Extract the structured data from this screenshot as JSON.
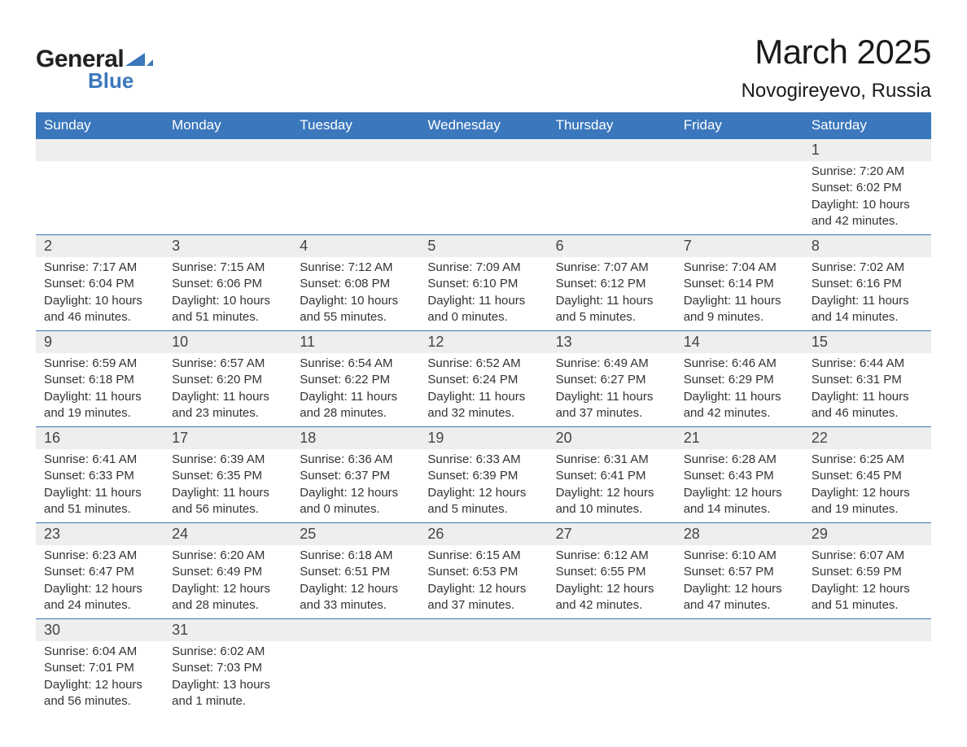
{
  "logo": {
    "text1": "General",
    "text2": "Blue"
  },
  "title": "March 2025",
  "location": "Novogireyevo, Russia",
  "colors": {
    "header_bg": "#3b77bc",
    "header_fg": "#ffffff",
    "daynum_bg": "#eeeeee",
    "border": "#3b77bc",
    "page_bg": "#ffffff",
    "text": "#333333"
  },
  "typography": {
    "title_fontsize": 42,
    "location_fontsize": 24,
    "header_fontsize": 17,
    "daynum_fontsize": 18,
    "detail_fontsize": 15
  },
  "days_of_week": [
    "Sunday",
    "Monday",
    "Tuesday",
    "Wednesday",
    "Thursday",
    "Friday",
    "Saturday"
  ],
  "weeks": [
    [
      null,
      null,
      null,
      null,
      null,
      null,
      {
        "n": "1",
        "sunrise": "Sunrise: 7:20 AM",
        "sunset": "Sunset: 6:02 PM",
        "daylight1": "Daylight: 10 hours",
        "daylight2": "and 42 minutes."
      }
    ],
    [
      {
        "n": "2",
        "sunrise": "Sunrise: 7:17 AM",
        "sunset": "Sunset: 6:04 PM",
        "daylight1": "Daylight: 10 hours",
        "daylight2": "and 46 minutes."
      },
      {
        "n": "3",
        "sunrise": "Sunrise: 7:15 AM",
        "sunset": "Sunset: 6:06 PM",
        "daylight1": "Daylight: 10 hours",
        "daylight2": "and 51 minutes."
      },
      {
        "n": "4",
        "sunrise": "Sunrise: 7:12 AM",
        "sunset": "Sunset: 6:08 PM",
        "daylight1": "Daylight: 10 hours",
        "daylight2": "and 55 minutes."
      },
      {
        "n": "5",
        "sunrise": "Sunrise: 7:09 AM",
        "sunset": "Sunset: 6:10 PM",
        "daylight1": "Daylight: 11 hours",
        "daylight2": "and 0 minutes."
      },
      {
        "n": "6",
        "sunrise": "Sunrise: 7:07 AM",
        "sunset": "Sunset: 6:12 PM",
        "daylight1": "Daylight: 11 hours",
        "daylight2": "and 5 minutes."
      },
      {
        "n": "7",
        "sunrise": "Sunrise: 7:04 AM",
        "sunset": "Sunset: 6:14 PM",
        "daylight1": "Daylight: 11 hours",
        "daylight2": "and 9 minutes."
      },
      {
        "n": "8",
        "sunrise": "Sunrise: 7:02 AM",
        "sunset": "Sunset: 6:16 PM",
        "daylight1": "Daylight: 11 hours",
        "daylight2": "and 14 minutes."
      }
    ],
    [
      {
        "n": "9",
        "sunrise": "Sunrise: 6:59 AM",
        "sunset": "Sunset: 6:18 PM",
        "daylight1": "Daylight: 11 hours",
        "daylight2": "and 19 minutes."
      },
      {
        "n": "10",
        "sunrise": "Sunrise: 6:57 AM",
        "sunset": "Sunset: 6:20 PM",
        "daylight1": "Daylight: 11 hours",
        "daylight2": "and 23 minutes."
      },
      {
        "n": "11",
        "sunrise": "Sunrise: 6:54 AM",
        "sunset": "Sunset: 6:22 PM",
        "daylight1": "Daylight: 11 hours",
        "daylight2": "and 28 minutes."
      },
      {
        "n": "12",
        "sunrise": "Sunrise: 6:52 AM",
        "sunset": "Sunset: 6:24 PM",
        "daylight1": "Daylight: 11 hours",
        "daylight2": "and 32 minutes."
      },
      {
        "n": "13",
        "sunrise": "Sunrise: 6:49 AM",
        "sunset": "Sunset: 6:27 PM",
        "daylight1": "Daylight: 11 hours",
        "daylight2": "and 37 minutes."
      },
      {
        "n": "14",
        "sunrise": "Sunrise: 6:46 AM",
        "sunset": "Sunset: 6:29 PM",
        "daylight1": "Daylight: 11 hours",
        "daylight2": "and 42 minutes."
      },
      {
        "n": "15",
        "sunrise": "Sunrise: 6:44 AM",
        "sunset": "Sunset: 6:31 PM",
        "daylight1": "Daylight: 11 hours",
        "daylight2": "and 46 minutes."
      }
    ],
    [
      {
        "n": "16",
        "sunrise": "Sunrise: 6:41 AM",
        "sunset": "Sunset: 6:33 PM",
        "daylight1": "Daylight: 11 hours",
        "daylight2": "and 51 minutes."
      },
      {
        "n": "17",
        "sunrise": "Sunrise: 6:39 AM",
        "sunset": "Sunset: 6:35 PM",
        "daylight1": "Daylight: 11 hours",
        "daylight2": "and 56 minutes."
      },
      {
        "n": "18",
        "sunrise": "Sunrise: 6:36 AM",
        "sunset": "Sunset: 6:37 PM",
        "daylight1": "Daylight: 12 hours",
        "daylight2": "and 0 minutes."
      },
      {
        "n": "19",
        "sunrise": "Sunrise: 6:33 AM",
        "sunset": "Sunset: 6:39 PM",
        "daylight1": "Daylight: 12 hours",
        "daylight2": "and 5 minutes."
      },
      {
        "n": "20",
        "sunrise": "Sunrise: 6:31 AM",
        "sunset": "Sunset: 6:41 PM",
        "daylight1": "Daylight: 12 hours",
        "daylight2": "and 10 minutes."
      },
      {
        "n": "21",
        "sunrise": "Sunrise: 6:28 AM",
        "sunset": "Sunset: 6:43 PM",
        "daylight1": "Daylight: 12 hours",
        "daylight2": "and 14 minutes."
      },
      {
        "n": "22",
        "sunrise": "Sunrise: 6:25 AM",
        "sunset": "Sunset: 6:45 PM",
        "daylight1": "Daylight: 12 hours",
        "daylight2": "and 19 minutes."
      }
    ],
    [
      {
        "n": "23",
        "sunrise": "Sunrise: 6:23 AM",
        "sunset": "Sunset: 6:47 PM",
        "daylight1": "Daylight: 12 hours",
        "daylight2": "and 24 minutes."
      },
      {
        "n": "24",
        "sunrise": "Sunrise: 6:20 AM",
        "sunset": "Sunset: 6:49 PM",
        "daylight1": "Daylight: 12 hours",
        "daylight2": "and 28 minutes."
      },
      {
        "n": "25",
        "sunrise": "Sunrise: 6:18 AM",
        "sunset": "Sunset: 6:51 PM",
        "daylight1": "Daylight: 12 hours",
        "daylight2": "and 33 minutes."
      },
      {
        "n": "26",
        "sunrise": "Sunrise: 6:15 AM",
        "sunset": "Sunset: 6:53 PM",
        "daylight1": "Daylight: 12 hours",
        "daylight2": "and 37 minutes."
      },
      {
        "n": "27",
        "sunrise": "Sunrise: 6:12 AM",
        "sunset": "Sunset: 6:55 PM",
        "daylight1": "Daylight: 12 hours",
        "daylight2": "and 42 minutes."
      },
      {
        "n": "28",
        "sunrise": "Sunrise: 6:10 AM",
        "sunset": "Sunset: 6:57 PM",
        "daylight1": "Daylight: 12 hours",
        "daylight2": "and 47 minutes."
      },
      {
        "n": "29",
        "sunrise": "Sunrise: 6:07 AM",
        "sunset": "Sunset: 6:59 PM",
        "daylight1": "Daylight: 12 hours",
        "daylight2": "and 51 minutes."
      }
    ],
    [
      {
        "n": "30",
        "sunrise": "Sunrise: 6:04 AM",
        "sunset": "Sunset: 7:01 PM",
        "daylight1": "Daylight: 12 hours",
        "daylight2": "and 56 minutes."
      },
      {
        "n": "31",
        "sunrise": "Sunrise: 6:02 AM",
        "sunset": "Sunset: 7:03 PM",
        "daylight1": "Daylight: 13 hours",
        "daylight2": "and 1 minute."
      },
      null,
      null,
      null,
      null,
      null
    ]
  ]
}
